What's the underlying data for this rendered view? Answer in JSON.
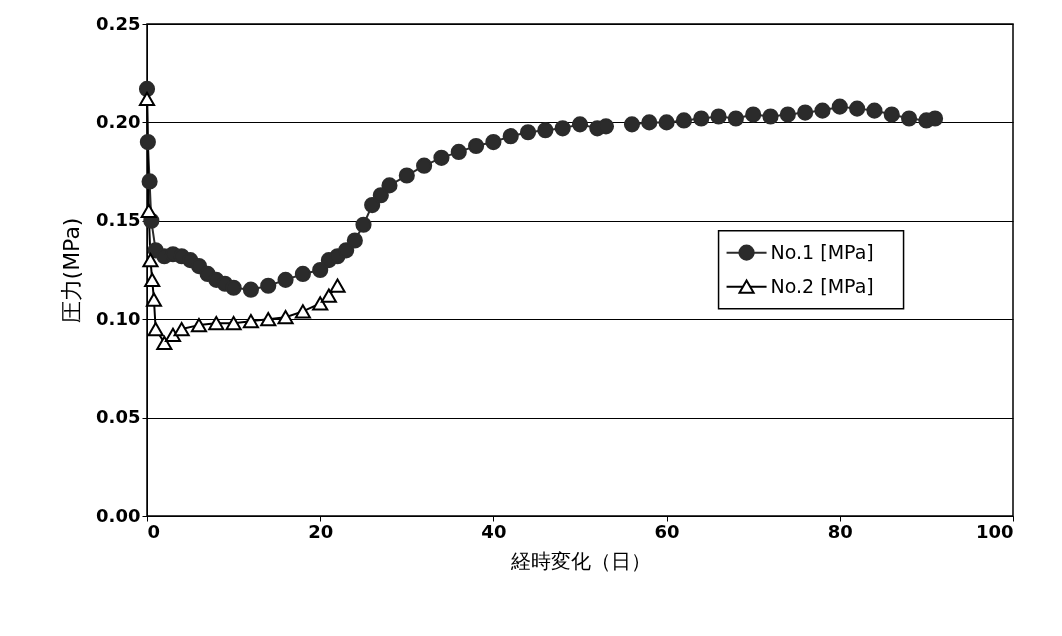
{
  "chart_data": {
    "type": "line",
    "xlabel": "経時変化（日）",
    "ylabel": "圧力(MPa)",
    "xlim": [
      0,
      100
    ],
    "xticks": [
      0,
      20,
      40,
      60,
      80,
      100
    ],
    "ylim": [
      0,
      0.25
    ],
    "yticks": [
      {
        "value": 0,
        "label": "0.00"
      },
      {
        "value": 0.05,
        "label": "0.05"
      },
      {
        "value": 0.1,
        "label": "0.10"
      },
      {
        "value": 0.15,
        "label": "0.15"
      },
      {
        "value": 0.2,
        "label": "0.20"
      },
      {
        "value": 0.25,
        "label": "0.25"
      }
    ],
    "grid": "y",
    "legend": "right",
    "line_style": "solid",
    "series": [
      {
        "name": "No.1 [MPa]",
        "color": "#2b2b2b",
        "marker": "circle",
        "x": [
          0,
          0.1,
          0.3,
          0.5,
          1,
          2,
          3,
          4,
          5,
          6,
          7,
          8,
          9,
          10,
          12,
          14,
          16,
          18,
          20,
          21,
          22,
          23,
          24,
          25,
          26,
          27,
          28,
          30,
          32,
          34,
          36,
          38,
          40,
          42,
          44,
          46,
          48,
          50,
          52,
          53,
          54.5,
          56,
          58,
          60,
          62,
          64,
          66,
          68,
          70,
          72,
          74,
          76,
          78,
          80,
          82,
          84,
          86,
          88,
          90,
          91
        ],
        "values": [
          0.217,
          0.19,
          0.17,
          0.15,
          0.135,
          0.132,
          0.133,
          0.132,
          0.13,
          0.127,
          0.123,
          0.12,
          0.118,
          0.116,
          0.115,
          0.117,
          0.12,
          0.123,
          0.125,
          0.13,
          0.132,
          0.135,
          0.14,
          0.148,
          0.158,
          0.163,
          0.168,
          0.173,
          0.178,
          0.182,
          0.185,
          0.188,
          0.19,
          0.193,
          0.195,
          0.196,
          0.197,
          0.199,
          0.197,
          0.198,
          null,
          0.199,
          0.2,
          0.2,
          0.201,
          0.202,
          0.203,
          0.202,
          0.204,
          0.203,
          0.204,
          0.205,
          0.206,
          0.208,
          0.207,
          0.206,
          0.204,
          0.202,
          0.201,
          0.202
        ]
      },
      {
        "name": "No.2 [MPa]",
        "color": "#000000",
        "marker": "triangle",
        "x": [
          0,
          0.2,
          0.4,
          0.6,
          0.8,
          1,
          2,
          3,
          4,
          6,
          8,
          10,
          12,
          14,
          16,
          18,
          20,
          21,
          22
        ],
        "values": [
          0.212,
          0.155,
          0.13,
          0.12,
          0.11,
          0.095,
          0.088,
          0.092,
          0.095,
          0.097,
          0.098,
          0.098,
          0.099,
          0.1,
          0.101,
          0.104,
          0.108,
          0.112,
          0.117
        ]
      }
    ]
  }
}
